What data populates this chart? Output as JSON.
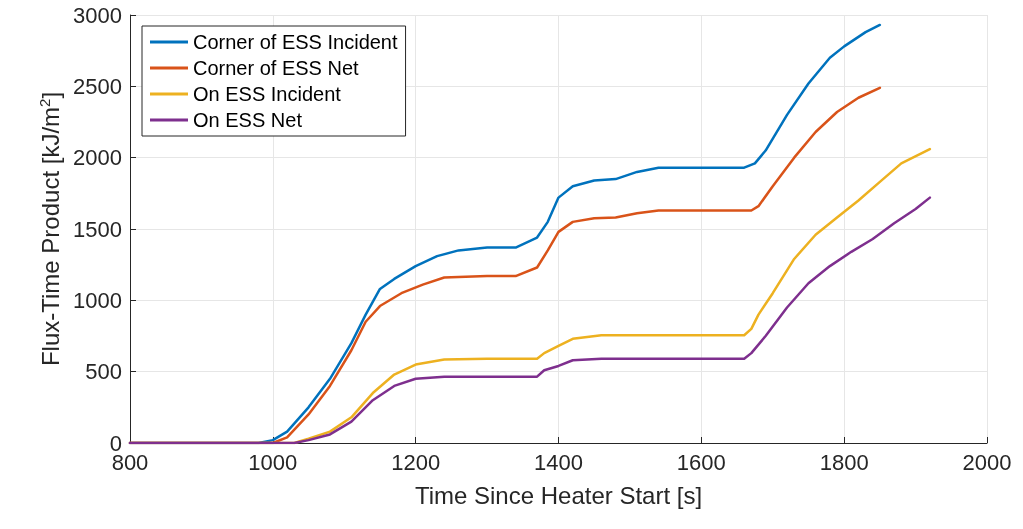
{
  "chart_data": {
    "type": "line",
    "xlabel": "Time Since Heater Start [s]",
    "ylabel": "Flux-Time Product [kJ/m$^{2}$]",
    "xlim": [
      800,
      2000
    ],
    "xticks": [
      800,
      1000,
      1200,
      1400,
      1600,
      1800,
      2000
    ],
    "ylim": [
      0,
      3000
    ],
    "yticks": [
      0,
      500,
      1000,
      1500,
      2000,
      2500,
      3000
    ],
    "grid": true,
    "legend": "top left",
    "marker": "none",
    "line_style": "solid",
    "series": [
      {
        "name": "Corner of ESS Incident",
        "color": "#0072bd",
        "x": [
          800,
          980,
          1000,
          1020,
          1050,
          1080,
          1110,
          1130,
          1150,
          1170,
          1200,
          1230,
          1260,
          1300,
          1340,
          1370,
          1385,
          1400,
          1420,
          1450,
          1480,
          1510,
          1540,
          1600,
          1660,
          1675,
          1690,
          1720,
          1750,
          1780,
          1800,
          1830,
          1850
        ],
        "values": [
          0,
          0,
          20,
          80,
          250,
          450,
          700,
          900,
          1080,
          1150,
          1240,
          1310,
          1350,
          1370,
          1370,
          1440,
          1550,
          1720,
          1800,
          1840,
          1850,
          1900,
          1930,
          1930,
          1930,
          1960,
          2050,
          2300,
          2520,
          2700,
          2780,
          2880,
          2930
        ]
      },
      {
        "name": "Corner of ESS Net",
        "color": "#d95319",
        "x": [
          800,
          1000,
          1020,
          1050,
          1080,
          1110,
          1130,
          1150,
          1180,
          1210,
          1240,
          1300,
          1340,
          1370,
          1385,
          1400,
          1420,
          1450,
          1480,
          1510,
          1540,
          1600,
          1670,
          1680,
          1700,
          1730,
          1760,
          1790,
          1820,
          1850
        ],
        "values": [
          0,
          0,
          40,
          200,
          400,
          650,
          850,
          960,
          1050,
          1110,
          1160,
          1170,
          1170,
          1230,
          1350,
          1480,
          1550,
          1575,
          1580,
          1610,
          1630,
          1630,
          1630,
          1660,
          1800,
          2000,
          2180,
          2320,
          2420,
          2490
        ]
      },
      {
        "name": "On ESS Incident",
        "color": "#edb120",
        "x": [
          800,
          1030,
          1050,
          1080,
          1110,
          1140,
          1170,
          1200,
          1240,
          1300,
          1370,
          1380,
          1400,
          1420,
          1460,
          1560,
          1660,
          1670,
          1680,
          1700,
          1730,
          1760,
          1790,
          1820,
          1850,
          1880,
          1920
        ],
        "values": [
          0,
          0,
          30,
          80,
          180,
          350,
          480,
          550,
          585,
          590,
          590,
          630,
          680,
          730,
          755,
          755,
          755,
          800,
          900,
          1050,
          1290,
          1460,
          1580,
          1700,
          1830,
          1960,
          2060
        ]
      },
      {
        "name": "On ESS Net",
        "color": "#7e2f8e",
        "x": [
          800,
          1030,
          1050,
          1080,
          1110,
          1140,
          1170,
          1200,
          1240,
          1370,
          1380,
          1400,
          1420,
          1460,
          1660,
          1670,
          1690,
          1720,
          1750,
          1780,
          1810,
          1840,
          1870,
          1900,
          1920
        ],
        "values": [
          0,
          0,
          20,
          60,
          150,
          300,
          400,
          450,
          465,
          465,
          510,
          540,
          580,
          590,
          590,
          630,
          750,
          950,
          1120,
          1240,
          1340,
          1430,
          1540,
          1640,
          1720
        ]
      }
    ]
  }
}
